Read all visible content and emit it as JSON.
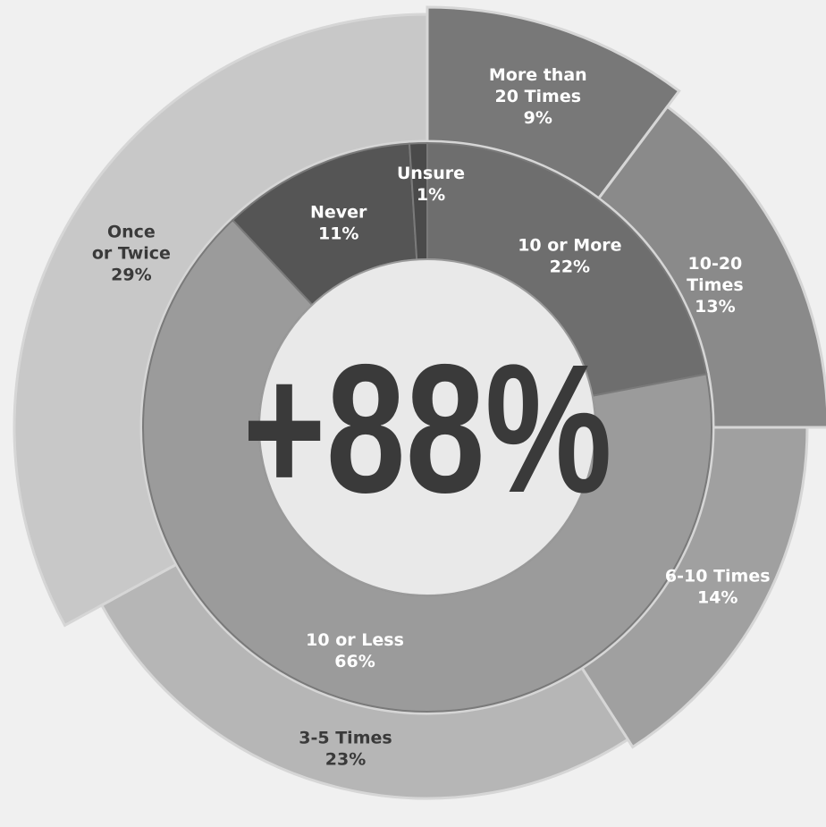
{
  "chart_data": {
    "type": "pie",
    "style": "sunburst-donut",
    "center_label": "+88%",
    "inner_ring": [
      {
        "name": "10 or More",
        "value": 22,
        "label": [
          "10 or More",
          "22%"
        ],
        "color": "#6e6e6e",
        "text_color": "#ffffff"
      },
      {
        "name": "10 or Less",
        "value": 66,
        "label": [
          "10 or Less",
          "66%"
        ],
        "color": "#9b9b9b",
        "text_color": "#ffffff"
      },
      {
        "name": "Never",
        "value": 11,
        "label": [
          "Never",
          "11%"
        ],
        "color": "#555555",
        "text_color": "#ffffff"
      },
      {
        "name": "Unsure",
        "value": 1,
        "label": [
          "Unsure",
          "1%"
        ],
        "color": "#4a4a4a",
        "text_color": "#ffffff"
      }
    ],
    "outer_ring": [
      {
        "name": "More than 20 Times",
        "value": 9,
        "label": [
          "More than",
          "20 Times",
          "9%"
        ],
        "color": "#787878",
        "text_color": "#ffffff"
      },
      {
        "name": "10-20 Times",
        "value": 13,
        "label": [
          "10-20",
          "Times",
          "13%"
        ],
        "color": "#8a8a8a",
        "text_color": "#ffffff"
      },
      {
        "name": "6-10 Times",
        "value": 14,
        "label": [
          "6-10 Times",
          "14%"
        ],
        "color": "#a0a0a0",
        "text_color": "#ffffff"
      },
      {
        "name": "3-5 Times",
        "value": 23,
        "label": [
          "3-5 Times",
          "23%"
        ],
        "color": "#b6b6b6",
        "text_color": "#3a3a3a"
      },
      {
        "name": "Once or Twice",
        "value": 29,
        "label": [
          "Once",
          "or Twice",
          "29%"
        ],
        "color": "#c8c8c8",
        "text_color": "#3a3a3a"
      }
    ]
  }
}
